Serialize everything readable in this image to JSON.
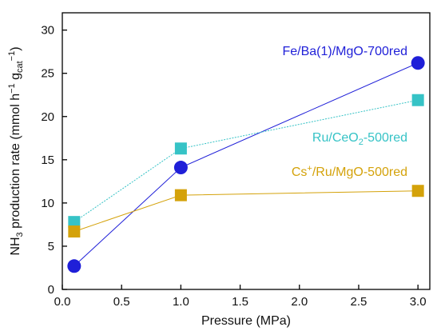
{
  "chart_data": {
    "type": "line",
    "xlabel": "Pressure (MPa)",
    "ylabel": {
      "prefix": "NH",
      "prefix_sub": "3",
      "middle": " production rate (mmol h",
      "exp1": "−1",
      "unit_g": " g",
      "g_sub": "cat",
      "exp2": "−1",
      "suffix": ")"
    },
    "xlim": [
      0.0,
      3.1
    ],
    "ylim": [
      0,
      32
    ],
    "xticks": [
      "0.0",
      "0.5",
      "1.0",
      "1.5",
      "2.0",
      "2.5",
      "3.0"
    ],
    "yticks": [
      "0",
      "5",
      "10",
      "15",
      "20",
      "25",
      "30"
    ],
    "grid": false,
    "series": [
      {
        "name": "Fe/Ba(1)/MgO-700red",
        "label_parts": [
          "Fe/Ba(1)/MgO-700red"
        ],
        "marker": "circle",
        "color": "#1f1fd8",
        "x": [
          0.1,
          1.0,
          3.0
        ],
        "y": [
          2.7,
          14.1,
          26.2
        ]
      },
      {
        "name": "Ru/CeO2-500red",
        "label_parts": [
          "Ru/CeO",
          "2",
          "-500red"
        ],
        "marker": "square",
        "color": "#36c3c6",
        "x": [
          0.1,
          1.0,
          3.0
        ],
        "y": [
          7.8,
          16.3,
          21.9
        ]
      },
      {
        "name": "Cs+/Ru/MgO-500red",
        "label_parts": [
          "Cs",
          "+",
          "/Ru/MgO-500red"
        ],
        "marker": "square",
        "color": "#d4a20a",
        "x": [
          0.1,
          1.0,
          3.0
        ],
        "y": [
          6.7,
          10.9,
          11.4
        ]
      }
    ]
  }
}
